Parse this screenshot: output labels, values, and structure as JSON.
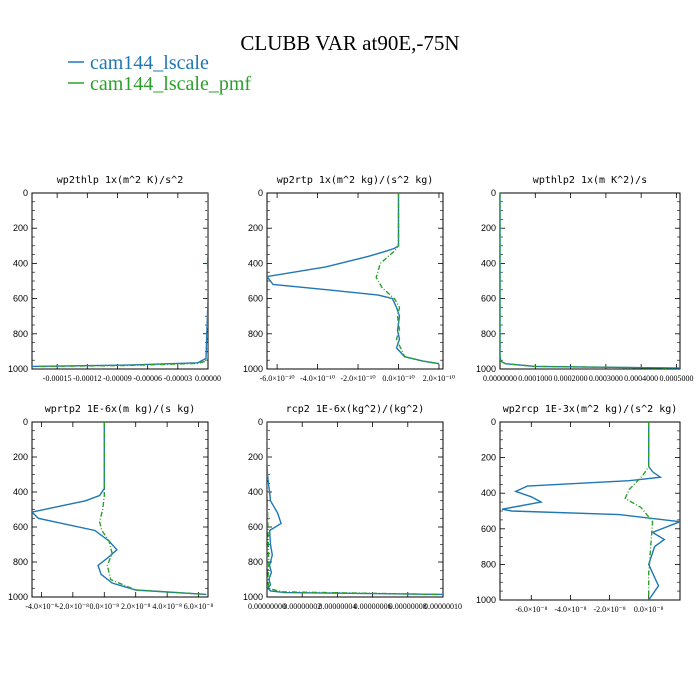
{
  "figure": {
    "title": "CLUBB VAR at90E,-75N",
    "legend": [
      {
        "label": "cam144_lscale",
        "color": "#1f77b4"
      },
      {
        "label": "cam144_lscale_pmf",
        "color": "#2ca02c"
      }
    ]
  },
  "chart_data": [
    {
      "type": "line",
      "title": "wp2thlp   1x(m^2 K)/s^2",
      "xlim": [
        -0.000175,
        0.0
      ],
      "ylim": [
        1000,
        0
      ],
      "y_inverted": true,
      "yticks": [
        0,
        200,
        400,
        600,
        800,
        1000
      ],
      "yticklabels": [
        "0",
        "200",
        "400",
        "600",
        "800",
        "1000"
      ],
      "xticks": [
        -0.00015,
        -0.00012,
        -9e-05,
        -6e-05,
        -3e-05,
        0.0
      ],
      "xticklabels": [
        "-0.00015",
        "-0.00012",
        "-0.00009",
        "-0.00006",
        "-0.00003",
        "0.00000"
      ],
      "series": [
        {
          "name": "cam144_lscale",
          "color": "#1f77b4",
          "dashed": false,
          "x": [
            0,
            0,
            -5e-07,
            0,
            0,
            -2e-06,
            -1e-05,
            -8e-05,
            -0.000175
          ],
          "y": [
            0,
            340,
            400,
            460,
            600,
            940,
            965,
            978,
            985
          ]
        },
        {
          "name": "cam144_lscale_pmf",
          "color": "#2ca02c",
          "dashed": true,
          "x": [
            0,
            0,
            0,
            -2e-06,
            -1e-05,
            -8e-05,
            -0.000172
          ],
          "y": [
            0,
            600,
            940,
            955,
            968,
            980,
            986
          ]
        }
      ]
    },
    {
      "type": "line",
      "title": "wp2rtp   1x(m^2 kg)/(s^2 kg)",
      "xlim": [
        -6.5e-10,
        2.2e-10
      ],
      "ylim": [
        1000,
        0
      ],
      "y_inverted": true,
      "yticks": [
        0,
        200,
        400,
        600,
        800,
        1000
      ],
      "yticklabels": [
        "0",
        "200",
        "400",
        "600",
        "800",
        "1000"
      ],
      "xticks": [
        -6e-10,
        -4e-10,
        -2e-10,
        0,
        2e-10
      ],
      "xticklabels": [
        "-6.0×10⁻¹⁰",
        "-4.0×10⁻¹⁰",
        "-2.0×10⁻¹⁰",
        "0.0×10⁻¹⁰",
        "2.0×10⁻¹⁰"
      ],
      "series": [
        {
          "name": "cam144_lscale",
          "color": "#1f77b4",
          "dashed": false,
          "x": [
            0,
            0,
            -2e-11,
            -6e-11,
            -1.5e-10,
            -3.6e-10,
            -6.5e-10,
            -6.2e-10,
            -3.5e-10,
            -1e-10,
            -3e-11,
            -1e-11,
            5e-12,
            -5e-12,
            5e-12,
            -1e-11,
            3e-11,
            1.2e-10,
            2e-10
          ],
          "y": [
            0,
            300,
            315,
            330,
            360,
            420,
            475,
            520,
            550,
            580,
            600,
            650,
            700,
            780,
            830,
            880,
            930,
            955,
            970
          ]
        },
        {
          "name": "cam144_lscale_pmf",
          "color": "#2ca02c",
          "dashed": true,
          "x": [
            0,
            0,
            -2e-11,
            -9e-11,
            -1.1e-10,
            -8e-11,
            -2e-11,
            5e-12,
            -5e-12,
            5e-12,
            -1e-11,
            3e-11,
            1.2e-10,
            2e-10
          ],
          "y": [
            0,
            300,
            330,
            400,
            480,
            540,
            600,
            650,
            700,
            780,
            830,
            930,
            955,
            970
          ]
        }
      ]
    },
    {
      "type": "line",
      "title": "wpthlp2   1x(m K^2)/s",
      "xlim": [
        0.0,
        0.00051
      ],
      "ylim": [
        1000,
        0
      ],
      "y_inverted": true,
      "yticks": [
        0,
        200,
        400,
        600,
        800,
        1000
      ],
      "yticklabels": [
        "0",
        "200",
        "400",
        "600",
        "800",
        "1000"
      ],
      "xticks": [
        0.0,
        0.0001,
        0.0002,
        0.0003,
        0.0004,
        0.0005
      ],
      "xticklabels": [
        "0.0000000",
        "0.0001000",
        "0.0002000",
        "0.0003000",
        "0.0004000",
        "0.0005000"
      ],
      "series": [
        {
          "name": "cam144_lscale",
          "color": "#1f77b4",
          "dashed": false,
          "x": [
            0,
            0,
            2e-06,
            1.5e-05,
            0.0001,
            0.00051
          ],
          "y": [
            0,
            930,
            955,
            970,
            985,
            995
          ]
        },
        {
          "name": "cam144_lscale_pmf",
          "color": "#2ca02c",
          "dashed": true,
          "x": [
            0,
            0,
            2e-06,
            1.5e-05,
            0.0001,
            0.00049
          ],
          "y": [
            0,
            930,
            955,
            970,
            985,
            995
          ]
        }
      ]
    },
    {
      "type": "line",
      "title": "wprtp2   1E-6x(m kg)/(s kg)",
      "xlim": [
        -4.6e-08,
        6.6e-08
      ],
      "ylim": [
        1000,
        0
      ],
      "y_inverted": true,
      "yticks": [
        0,
        200,
        400,
        600,
        800,
        1000
      ],
      "yticklabels": [
        "0",
        "200",
        "400",
        "600",
        "800",
        "1000"
      ],
      "xticks": [
        -4e-08,
        -2e-08,
        0,
        2e-08,
        4e-08,
        6e-08
      ],
      "xticklabels": [
        "-4.0×10⁻⁸",
        "-2.0×10⁻⁸",
        "0.0×10⁻⁸",
        "2.0×10⁻⁸",
        "4.0×10⁻⁸",
        "6.0×10⁻⁸"
      ],
      "series": [
        {
          "name": "cam144_lscale",
          "color": "#1f77b4",
          "dashed": false,
          "x": [
            0,
            0,
            -3e-09,
            -1.2e-08,
            -4.6e-08,
            -4.2e-08,
            -6e-09,
            3e-09,
            8e-09,
            3e-09,
            -4e-09,
            -2e-09,
            5e-09,
            2e-08,
            6.5e-08
          ],
          "y": [
            0,
            380,
            420,
            450,
            515,
            550,
            620,
            680,
            730,
            770,
            820,
            870,
            920,
            960,
            985
          ]
        },
        {
          "name": "cam144_lscale_pmf",
          "color": "#2ca02c",
          "dashed": true,
          "x": [
            0,
            0,
            -1e-09,
            -3e-09,
            -1.5e-09,
            3e-09,
            5e-09,
            2e-09,
            4e-09,
            2e-08,
            6.5e-08
          ],
          "y": [
            0,
            420,
            500,
            570,
            620,
            680,
            750,
            820,
            900,
            960,
            985
          ]
        }
      ]
    },
    {
      "type": "line",
      "title": "rcp2   1E-6x(kg^2)/(kg^2)",
      "xlim": [
        0.0,
        1e-07
      ],
      "ylim": [
        1000,
        0
      ],
      "y_inverted": true,
      "yticks": [
        0,
        200,
        400,
        600,
        800,
        1000
      ],
      "yticklabels": [
        "0",
        "200",
        "400",
        "600",
        "800",
        "1000"
      ],
      "xticks": [
        0.0,
        2e-08,
        4e-08,
        6e-08,
        8e-08,
        1e-07
      ],
      "xticklabels": [
        "0.00000000",
        "0.00000002",
        "0.00000004",
        "0.00000006",
        "0.00000008",
        "0.00000010"
      ],
      "series": [
        {
          "name": "cam144_lscale",
          "color": "#1f77b4",
          "dashed": false,
          "x": [
            0,
            0,
            3e-10,
            8e-10,
            1.5e-09,
            2e-09,
            6e-09,
            8e-09,
            1.5e-09,
            2e-09,
            3e-09,
            1.5e-09,
            2.5e-09,
            1e-09,
            2e-09,
            5e-10,
            2e-09,
            1e-08,
            1e-07
          ],
          "y": [
            0,
            240,
            300,
            350,
            400,
            450,
            520,
            580,
            620,
            700,
            760,
            820,
            860,
            900,
            930,
            950,
            965,
            975,
            985
          ]
        },
        {
          "name": "cam144_lscale_pmf",
          "color": "#2ca02c",
          "dashed": true,
          "x": [
            0,
            0,
            5e-10,
            1e-09,
            5e-10,
            1e-09,
            8e-09,
            9.7e-08
          ],
          "y": [
            0,
            400,
            600,
            800,
            900,
            950,
            970,
            985
          ]
        }
      ]
    },
    {
      "type": "line",
      "title": "wp2rcp   1E-3x(m^2 kg)/(s^2 kg)",
      "xlim": [
        -7.6e-08,
        1.6e-08
      ],
      "ylim": [
        1000,
        0
      ],
      "y_inverted": true,
      "yticks": [
        0,
        200,
        400,
        600,
        800,
        1000
      ],
      "yticklabels": [
        "0",
        "200",
        "400",
        "600",
        "800",
        "1000"
      ],
      "xticks": [
        -6e-08,
        -4e-08,
        -2e-08,
        0
      ],
      "xticklabels": [
        "-6.0×10⁻⁸",
        "-4.0×10⁻⁸",
        "-2.0×10⁻⁸",
        "0.0×10⁻⁸"
      ],
      "series": [
        {
          "name": "cam144_lscale",
          "color": "#1f77b4",
          "dashed": false,
          "x": [
            0,
            0,
            2e-09,
            6e-09,
            -1e-08,
            -6.2e-08,
            -6.8e-08,
            -6e-08,
            -5.5e-08,
            -7.5e-08,
            -7e-08,
            -1.5e-08,
            1.6e-08,
            2e-09,
            8e-09,
            3e-09,
            0,
            5e-09,
            0
          ],
          "y": [
            0,
            250,
            280,
            310,
            330,
            360,
            390,
            420,
            450,
            490,
            500,
            520,
            560,
            620,
            660,
            700,
            800,
            920,
            1000
          ]
        },
        {
          "name": "cam144_lscale_pmf",
          "color": "#2ca02c",
          "dashed": true,
          "x": [
            0,
            0,
            -3e-09,
            -1e-08,
            -1.2e-08,
            -4e-09,
            2e-09,
            1e-09,
            0,
            0
          ],
          "y": [
            0,
            250,
            300,
            380,
            430,
            480,
            560,
            700,
            850,
            1000
          ]
        }
      ]
    }
  ]
}
